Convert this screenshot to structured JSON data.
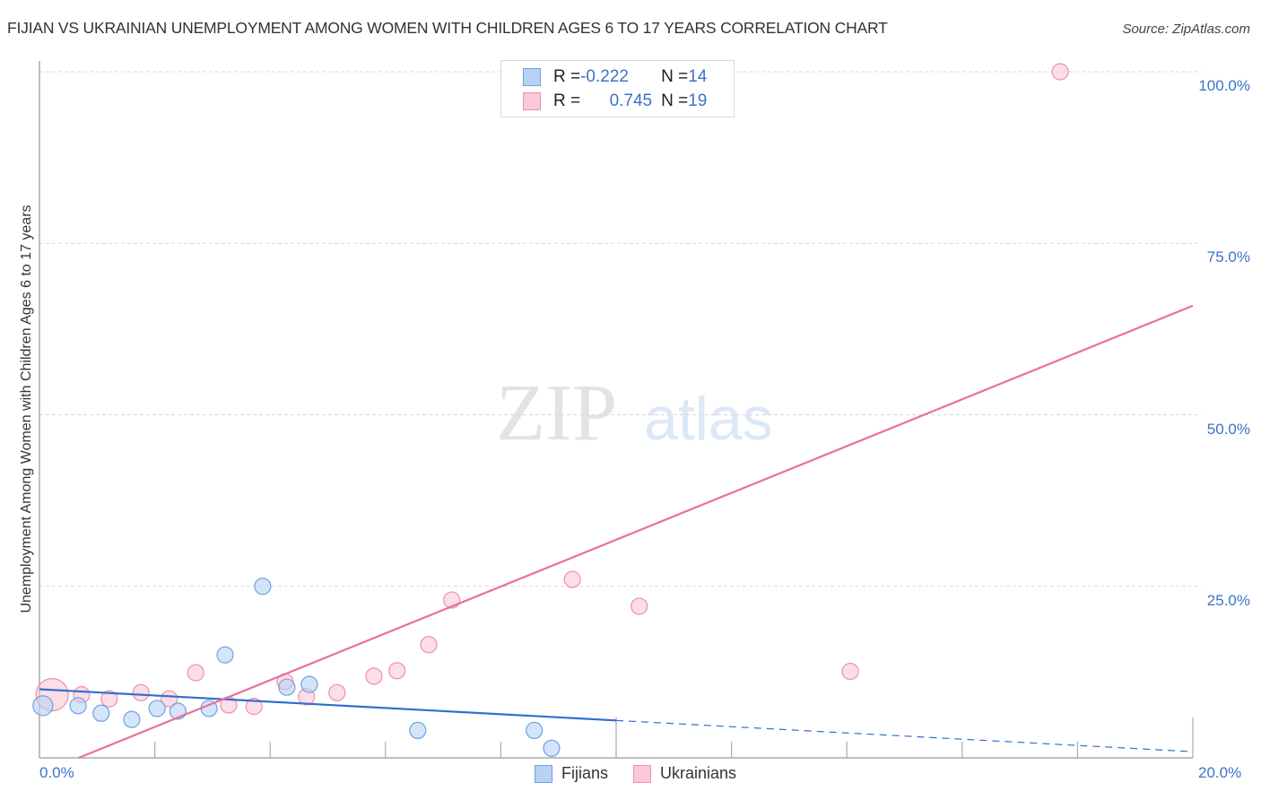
{
  "header": {
    "title": "FIJIAN VS UKRAINIAN UNEMPLOYMENT AMONG WOMEN WITH CHILDREN AGES 6 TO 17 YEARS CORRELATION CHART",
    "source": "Source: ZipAtlas.com"
  },
  "watermark": {
    "zip": "ZIP",
    "atlas": "atlas"
  },
  "axes": {
    "ylabel": "Unemployment Among Women with Children Ages 6 to 17 years",
    "yticks": [
      "100.0%",
      "75.0%",
      "50.0%",
      "25.0%"
    ],
    "xticks": [
      "0.0%",
      "20.0%"
    ]
  },
  "legend": {
    "fijians": {
      "r_label": "R = ",
      "r_value": "-0.222",
      "n_label": "N = ",
      "n_value": "14",
      "name": "Fijians",
      "fill": "#b8d2f5",
      "stroke": "#6fa0e0"
    },
    "ukrainians": {
      "r_label": "R = ",
      "r_value": "0.745",
      "n_label": "N = ",
      "n_value": "19",
      "name": "Ukrainians",
      "fill": "#fac8d6",
      "stroke": "#ee8fab"
    }
  },
  "chart_data": {
    "type": "scatter",
    "title": "FIJIAN VS UKRAINIAN UNEMPLOYMENT AMONG WOMEN WITH CHILDREN AGES 6 TO 17 YEARS CORRELATION CHART",
    "xlabel": "",
    "ylabel": "Unemployment Among Women with Children Ages 6 to 17 years",
    "xlim": [
      0,
      20
    ],
    "ylim": [
      0,
      100
    ],
    "x_ticks": [
      "0.0%",
      "20.0%"
    ],
    "y_ticks": [
      "25.0%",
      "50.0%",
      "75.0%",
      "100.0%"
    ],
    "grid": true,
    "legend_position": "top-center and bottom-center",
    "series": [
      {
        "name": "Fijians",
        "color": "#6fa0e0",
        "R": -0.222,
        "N": 14,
        "points": [
          [
            0.06,
            7.6
          ],
          [
            0.67,
            7.6
          ],
          [
            1.07,
            6.5
          ],
          [
            1.6,
            5.6
          ],
          [
            2.04,
            7.2
          ],
          [
            2.4,
            6.8
          ],
          [
            2.94,
            7.2
          ],
          [
            3.22,
            15.0
          ],
          [
            3.87,
            25.0
          ],
          [
            4.29,
            10.3
          ],
          [
            4.68,
            10.7
          ],
          [
            6.56,
            4.0
          ],
          [
            8.58,
            4.0
          ],
          [
            8.88,
            1.4
          ]
        ],
        "trend": {
          "x0": 0,
          "y0": 10.0,
          "x1": 20,
          "y1": 0.9,
          "solid_until_x": 10.0
        }
      },
      {
        "name": "Ukrainians",
        "color": "#e8709a",
        "R": 0.745,
        "N": 19,
        "points": [
          [
            0.22,
            9.2
          ],
          [
            0.73,
            9.2
          ],
          [
            1.21,
            8.6
          ],
          [
            1.76,
            9.5
          ],
          [
            2.25,
            8.6
          ],
          [
            2.71,
            12.4
          ],
          [
            3.28,
            7.7
          ],
          [
            3.72,
            7.5
          ],
          [
            4.26,
            11.1
          ],
          [
            4.63,
            8.9
          ],
          [
            5.16,
            9.5
          ],
          [
            5.8,
            11.9
          ],
          [
            6.2,
            12.7
          ],
          [
            6.75,
            16.5
          ],
          [
            7.15,
            23.0
          ],
          [
            9.24,
            26.0
          ],
          [
            10.4,
            22.1
          ],
          [
            14.06,
            12.6
          ],
          [
            17.7,
            100.0
          ]
        ],
        "trend": {
          "x0": 0.68,
          "y0": 0,
          "x1": 20,
          "y1": 65.9
        }
      }
    ]
  }
}
